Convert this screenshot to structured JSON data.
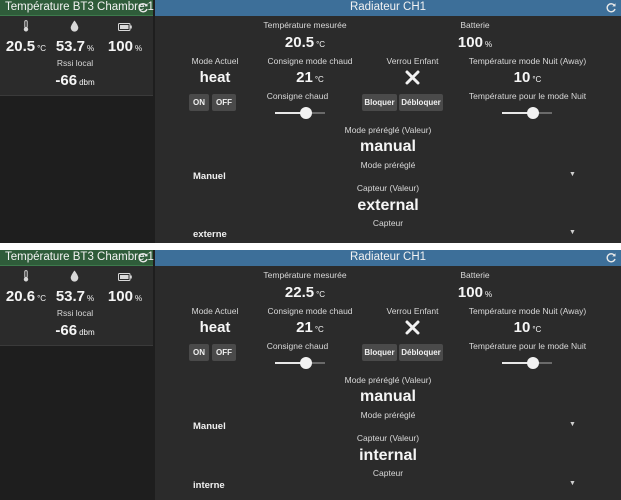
{
  "cards": [
    {
      "sensor": {
        "title": "Température BT3 Chambre 1",
        "temperature": {
          "value": "20.5",
          "unit": "°C"
        },
        "humidity": {
          "value": "53.7",
          "unit": "%"
        },
        "battery": {
          "value": "100",
          "unit": "%"
        },
        "rssi_label": "Rssi local",
        "rssi": {
          "value": "-66",
          "unit": "dbm"
        }
      },
      "radiator": {
        "title": "Radiateur CH1",
        "measured_temp": {
          "label": "Température mesurée",
          "value": "20.5",
          "unit": "°C"
        },
        "battery": {
          "label": "Batterie",
          "value": "100",
          "unit": "%"
        },
        "mode_actuel": {
          "label": "Mode Actuel",
          "value": "heat",
          "on_label": "ON",
          "off_label": "OFF"
        },
        "consigne_mode_chaud": {
          "label": "Consigne mode chaud",
          "value": "21",
          "unit": "°C"
        },
        "consigne_chaud": {
          "label": "Consigne chaud",
          "level": 0.62
        },
        "verrou_enfant": {
          "label": "Verrou Enfant",
          "lock_label": "Bloquer",
          "unlock_label": "Débloquer"
        },
        "night_temp": {
          "label": "Température mode Nuit (Away)",
          "value": "10",
          "unit": "°C"
        },
        "night_setpoint": {
          "label": "Température pour le mode Nuit",
          "level": 0.62
        },
        "preset_value": {
          "label": "Mode préréglé (Valeur)",
          "value": "manual"
        },
        "preset_select": {
          "label": "Mode préréglé",
          "value": "Manuel"
        },
        "sensor_value": {
          "label": "Capteur (Valeur)",
          "value": "external"
        },
        "sensor_select": {
          "label": "Capteur",
          "value": "externe"
        }
      }
    },
    {
      "sensor": {
        "title": "Température BT3 Chambre 1",
        "temperature": {
          "value": "20.6",
          "unit": "°C"
        },
        "humidity": {
          "value": "53.7",
          "unit": "%"
        },
        "battery": {
          "value": "100",
          "unit": "%"
        },
        "rssi_label": "Rssi local",
        "rssi": {
          "value": "-66",
          "unit": "dbm"
        }
      },
      "radiator": {
        "title": "Radiateur CH1",
        "measured_temp": {
          "label": "Température mesurée",
          "value": "22.5",
          "unit": "°C"
        },
        "battery": {
          "label": "Batterie",
          "value": "100",
          "unit": "%"
        },
        "mode_actuel": {
          "label": "Mode Actuel",
          "value": "heat",
          "on_label": "ON",
          "off_label": "OFF"
        },
        "consigne_mode_chaud": {
          "label": "Consigne mode chaud",
          "value": "21",
          "unit": "°C"
        },
        "consigne_chaud": {
          "label": "Consigne chaud",
          "level": 0.62
        },
        "verrou_enfant": {
          "label": "Verrou Enfant",
          "lock_label": "Bloquer",
          "unlock_label": "Débloquer"
        },
        "night_temp": {
          "label": "Température mode Nuit (Away)",
          "value": "10",
          "unit": "°C"
        },
        "night_setpoint": {
          "label": "Température pour le mode Nuit",
          "level": 0.62
        },
        "preset_value": {
          "label": "Mode préréglé (Valeur)",
          "value": "manual"
        },
        "preset_select": {
          "label": "Mode préréglé",
          "value": "Manuel"
        },
        "sensor_value": {
          "label": "Capteur (Valeur)",
          "value": "internal"
        },
        "sensor_select": {
          "label": "Capteur",
          "value": "interne"
        }
      }
    }
  ],
  "icons": {
    "thermometer": "thermometer-icon",
    "humidity": "water-drop-icon",
    "battery": "battery-icon",
    "refresh": "refresh-icon",
    "lock": "close-x-icon",
    "dropdown": "caret-down-icon"
  },
  "colors": {
    "sensor_header": "#2f5c3a",
    "radiator_header": "#3d6f99",
    "card_bg": "#2b2b2b",
    "button_bg": "#4a4a4a"
  }
}
